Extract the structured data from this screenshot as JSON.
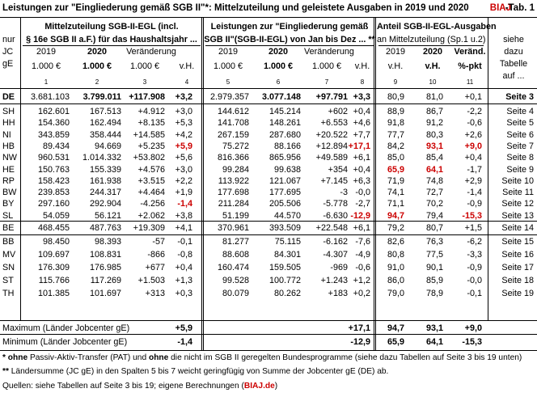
{
  "title": {
    "main": "Leistungen zur \"Eingliederung gemäß SGB II\"*: Mittelzuteilung und geleistete Ausgaben in 2019 und 2020",
    "brand": "BIAJ",
    "tab": "-Tab. 1"
  },
  "header": {
    "left_col": [
      "nur",
      "JC",
      "gE"
    ],
    "group1_line1": "Mittelzuteilung SGB-II-EGL (incl.",
    "group1_line2": "§ 16e SGB II a.F.) für das Haushaltsjahr ...",
    "group2_line1": "Leistungen zur \"Eingliederung gemäß",
    "group2_line2": "SGB II\"(SGB-II-EGL) von Jan bis Dez ... **",
    "group3_line1": "Anteil SGB-II-EGL-Ausgaben",
    "group3_line2": "an  Mittelzuteilung (Sp.1 u.2)",
    "side_note": [
      "siehe",
      "dazu",
      "Tabelle",
      "auf ..."
    ],
    "sub": {
      "c1": "2019",
      "c2": "2020",
      "c3": "Veränderung",
      "c5": "2019",
      "c6": "2020",
      "c7": "Veränderung",
      "c9": "2019",
      "c10": "2020",
      "c11": "Veränd."
    },
    "units": {
      "c1": "1.000 €",
      "c2": "1.000 €",
      "c3": "1.000 €",
      "c4": "v.H.",
      "c5": "1.000 €",
      "c6": "1.000 €",
      "c7": "1.000 €",
      "c8": "v.H.",
      "c9": "v.H.",
      "c10": "v.H.",
      "c11": "%-pkt"
    },
    "numbers": [
      "1",
      "2",
      "3",
      "4",
      "5",
      "6",
      "7",
      "8",
      "9",
      "10",
      "11"
    ]
  },
  "rows": [
    {
      "id": "DE",
      "c1": "3.681.103",
      "c2": "3.799.011",
      "c3": "+117.908",
      "c4": "+3,2",
      "c5": "2.979.357",
      "c6": "3.077.148",
      "c7": "+97.791",
      "c8": "+3,3",
      "c9": "80,9",
      "c10": "81,0",
      "c11": "+0,1",
      "ref": "Seite 3",
      "bold": true
    },
    {
      "id": "SH",
      "c1": "162.601",
      "c2": "167.513",
      "c3": "+4.912",
      "c4": "+3,0",
      "c5": "144.612",
      "c6": "145.214",
      "c7": "+602",
      "c8": "+0,4",
      "c9": "88,9",
      "c10": "86,7",
      "c11": "-2,2",
      "ref": "Seite 4"
    },
    {
      "id": "HH",
      "c1": "154.360",
      "c2": "162.494",
      "c3": "+8.135",
      "c4": "+5,3",
      "c5": "141.708",
      "c6": "148.261",
      "c7": "+6.553",
      "c8": "+4,6",
      "c9": "91,8",
      "c10": "91,2",
      "c11": "-0,6",
      "ref": "Seite 5"
    },
    {
      "id": "NI",
      "c1": "343.859",
      "c2": "358.444",
      "c3": "+14.585",
      "c4": "+4,2",
      "c5": "267.159",
      "c6": "287.680",
      "c7": "+20.522",
      "c8": "+7,7",
      "c9": "77,7",
      "c10": "80,3",
      "c11": "+2,6",
      "ref": "Seite 6"
    },
    {
      "id": "HB",
      "c1": "89.434",
      "c2": "94.669",
      "c3": "+5.235",
      "c4": "+5,9",
      "c5": "75.272",
      "c6": "88.166",
      "c7": "+12.894",
      "c8": "+17,1",
      "c9": "84,2",
      "c10": "93,1",
      "c11": "+9,0",
      "ref": "Seite 7",
      "red": [
        "c4",
        "c8",
        "c10",
        "c11"
      ]
    },
    {
      "id": "NW",
      "c1": "960.531",
      "c2": "1.014.332",
      "c3": "+53.802",
      "c4": "+5,6",
      "c5": "816.366",
      "c6": "865.956",
      "c7": "+49.589",
      "c8": "+6,1",
      "c9": "85,0",
      "c10": "85,4",
      "c11": "+0,4",
      "ref": "Seite 8"
    },
    {
      "id": "HE",
      "c1": "150.763",
      "c2": "155.339",
      "c3": "+4.576",
      "c4": "+3,0",
      "c5": "99.284",
      "c6": "99.638",
      "c7": "+354",
      "c8": "+0,4",
      "c9": "65,9",
      "c10": "64,1",
      "c11": "-1,7",
      "ref": "Seite 9",
      "red": [
        "c9",
        "c10"
      ]
    },
    {
      "id": "RP",
      "c1": "158.423",
      "c2": "161.938",
      "c3": "+3.515",
      "c4": "+2,2",
      "c5": "113.922",
      "c6": "121.067",
      "c7": "+7.145",
      "c8": "+6,3",
      "c9": "71,9",
      "c10": "74,8",
      "c11": "+2,9",
      "ref": "Seite 10"
    },
    {
      "id": "BW",
      "c1": "239.853",
      "c2": "244.317",
      "c3": "+4.464",
      "c4": "+1,9",
      "c5": "177.698",
      "c6": "177.695",
      "c7": "-3",
      "c8": "-0,0",
      "c9": "74,1",
      "c10": "72,7",
      "c11": "-1,4",
      "ref": "Seite 11"
    },
    {
      "id": "BY",
      "c1": "297.160",
      "c2": "292.904",
      "c3": "-4.256",
      "c4": "-1,4",
      "c5": "211.284",
      "c6": "205.506",
      "c7": "-5.778",
      "c8": "-2,7",
      "c9": "71,1",
      "c10": "70,2",
      "c11": "-0,9",
      "ref": "Seite 12",
      "red": [
        "c4"
      ]
    },
    {
      "id": "SL",
      "c1": "54.059",
      "c2": "56.121",
      "c3": "+2.062",
      "c4": "+3,8",
      "c5": "51.199",
      "c6": "44.570",
      "c7": "-6.630",
      "c8": "-12,9",
      "c9": "94,7",
      "c10": "79,4",
      "c11": "-15,3",
      "ref": "Seite 13",
      "red": [
        "c8",
        "c9",
        "c11"
      ]
    },
    {
      "id": "BE",
      "c1": "468.455",
      "c2": "487.763",
      "c3": "+19.309",
      "c4": "+4,1",
      "c5": "370.961",
      "c6": "393.509",
      "c7": "+22.548",
      "c8": "+6,1",
      "c9": "79,2",
      "c10": "80,7",
      "c11": "+1,5",
      "ref": "Seite 14"
    },
    {
      "id": "BB",
      "c1": "98.450",
      "c2": "98.393",
      "c3": "-57",
      "c4": "-0,1",
      "c5": "81.277",
      "c6": "75.115",
      "c7": "-6.162",
      "c8": "-7,6",
      "c9": "82,6",
      "c10": "76,3",
      "c11": "-6,2",
      "ref": "Seite 15"
    },
    {
      "id": "MV",
      "c1": "109.697",
      "c2": "108.831",
      "c3": "-866",
      "c4": "-0,8",
      "c5": "88.608",
      "c6": "84.301",
      "c7": "-4.307",
      "c8": "-4,9",
      "c9": "80,8",
      "c10": "77,5",
      "c11": "-3,3",
      "ref": "Seite 16"
    },
    {
      "id": "SN",
      "c1": "176.309",
      "c2": "176.985",
      "c3": "+677",
      "c4": "+0,4",
      "c5": "160.474",
      "c6": "159.505",
      "c7": "-969",
      "c8": "-0,6",
      "c9": "91,0",
      "c10": "90,1",
      "c11": "-0,9",
      "ref": "Seite 17"
    },
    {
      "id": "ST",
      "c1": "115.766",
      "c2": "117.269",
      "c3": "+1.503",
      "c4": "+1,3",
      "c5": "99.528",
      "c6": "100.772",
      "c7": "+1.243",
      "c8": "+1,2",
      "c9": "86,0",
      "c10": "85,9",
      "c11": "-0,0",
      "ref": "Seite 18"
    },
    {
      "id": "TH",
      "c1": "101.385",
      "c2": "101.697",
      "c3": "+313",
      "c4": "+0,3",
      "c5": "80.079",
      "c6": "80.262",
      "c7": "+183",
      "c8": "+0,2",
      "c9": "79,0",
      "c10": "78,9",
      "c11": "-0,1",
      "ref": "Seite 19"
    }
  ],
  "summary": [
    {
      "label": "Maximum (Länder Jobcenter gE)",
      "c4": "+5,9",
      "c8": "+17,1",
      "c9": "94,7",
      "c10": "93,1",
      "c11": "+9,0"
    },
    {
      "label": "Minimum (Länder Jobcenter gE)",
      "c4": "-1,4",
      "c8": "-12,9",
      "c9": "65,9",
      "c10": "64,1",
      "c11": "-15,3"
    }
  ],
  "footnotes": {
    "f1_star": "*",
    "f1_a": " ohne",
    "f1_b": " Passiv-Aktiv-Transfer (PAT) und ",
    "f1_c": "ohne",
    "f1_d": " die nicht im SGB II geregelten Bundesprogramme (siehe dazu Tabellen auf Seite 3 bis 19 unten)",
    "f2_star": "**",
    "f2_text": " Ländersumme (JC gE) in den Spalten 5 bis 7  weicht geringfügig von Summe der Jobcenter gE (DE) ab.",
    "f3_text": "Quellen: siehe Tabellen auf Seite 3 bis 19; eigene Berechnungen (",
    "f3_brand": "BIAJ.de",
    "f3_end": ")"
  }
}
